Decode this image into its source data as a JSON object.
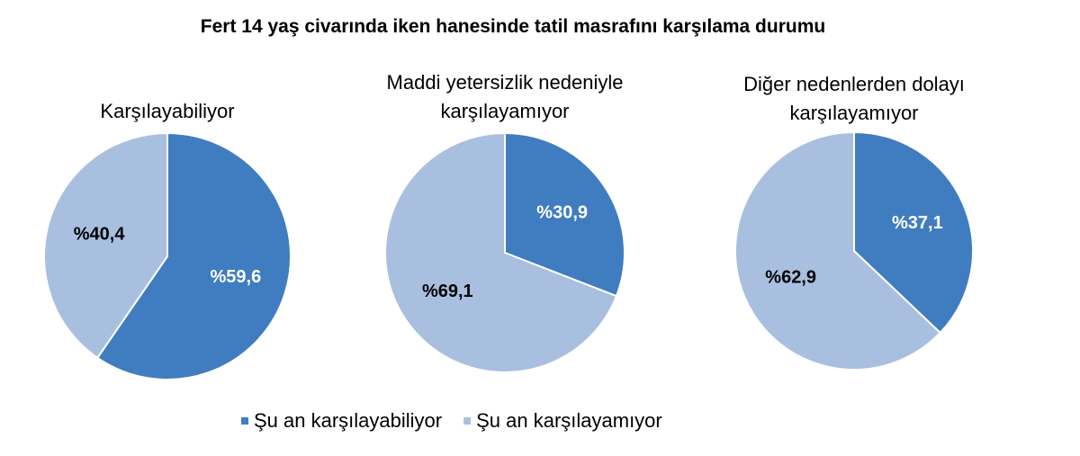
{
  "title": "Fert 14 yaş civarında iken hanesinde tatil masrafını karşılama durumu",
  "chart_data": [
    {
      "type": "pie",
      "title": "Karşılayabiliyor",
      "categories": [
        "Şu an karşılayabiliyor",
        "Şu an karşılayamıyor"
      ],
      "values": [
        59.6,
        40.4
      ],
      "value_labels": [
        "%59,6",
        "%40,4"
      ],
      "colors": [
        "#3f7dc0",
        "#a9bfe0"
      ]
    },
    {
      "type": "pie",
      "title": "Maddi yetersizlik nedeniyle karşılayamıyor",
      "categories": [
        "Şu an karşılayabiliyor",
        "Şu an karşılayamıyor"
      ],
      "values": [
        30.9,
        69.1
      ],
      "value_labels": [
        "%30,9",
        "%69,1"
      ],
      "colors": [
        "#3f7dc0",
        "#a9bfe0"
      ]
    },
    {
      "type": "pie",
      "title": "Diğer nedenlerden dolayı karşılayamıyor",
      "categories": [
        "Şu an karşılayabiliyor",
        "Şu an karşılayamıyor"
      ],
      "values": [
        37.1,
        62.9
      ],
      "value_labels": [
        "%37,1",
        "%62,9"
      ],
      "colors": [
        "#3f7dc0",
        "#a9bfe0"
      ]
    }
  ]
}
